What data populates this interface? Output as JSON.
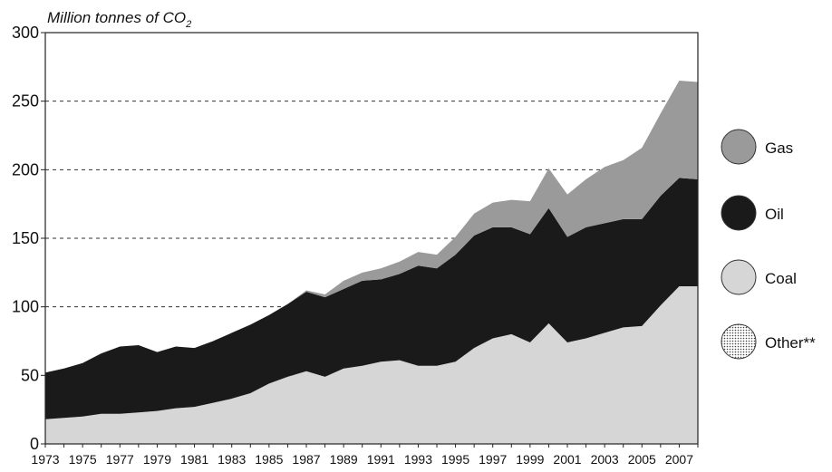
{
  "chart_data": {
    "type": "area",
    "stacked": true,
    "title": "",
    "unit_label_main": "Million tonnes of CO",
    "unit_label_sub": "2",
    "xlabel": "",
    "ylabel": "",
    "ylim": [
      0,
      300
    ],
    "yticks": [
      0,
      50,
      100,
      150,
      200,
      250,
      300
    ],
    "xlim": [
      1973,
      2008
    ],
    "xtick_labels": [
      "1973",
      "1975",
      "1977",
      "1979",
      "1981",
      "1983",
      "1985",
      "1987",
      "1989",
      "1991",
      "1993",
      "1995",
      "1997",
      "1999",
      "2001",
      "2003",
      "2005",
      "2007"
    ],
    "grid": "horizontal dashed",
    "legend_position": "right",
    "x": [
      1973,
      1974,
      1975,
      1976,
      1977,
      1978,
      1979,
      1980,
      1981,
      1982,
      1983,
      1984,
      1985,
      1986,
      1987,
      1988,
      1989,
      1990,
      1991,
      1992,
      1993,
      1994,
      1995,
      1996,
      1997,
      1998,
      1999,
      2000,
      2001,
      2002,
      2003,
      2004,
      2005,
      2006,
      2007,
      2008
    ],
    "series": [
      {
        "name": "Coal",
        "color": "#d6d6d6",
        "values": [
          18,
          19,
          20,
          22,
          22,
          23,
          24,
          26,
          27,
          30,
          33,
          37,
          44,
          49,
          53,
          49,
          55,
          57,
          60,
          61,
          57,
          57,
          60,
          70,
          77,
          80,
          74,
          88,
          74,
          77,
          81,
          85,
          86,
          101,
          115,
          115
        ]
      },
      {
        "name": "Oil",
        "color": "#1a1a1a",
        "values": [
          34,
          36,
          39,
          44,
          49,
          49,
          43,
          45,
          43,
          45,
          48,
          50,
          50,
          53,
          58,
          58,
          58,
          62,
          60,
          63,
          73,
          71,
          78,
          82,
          81,
          78,
          79,
          84,
          77,
          81,
          80,
          79,
          78,
          80,
          79,
          78
        ]
      },
      {
        "name": "Gas",
        "color": "#9a9a9a",
        "values": [
          0,
          0,
          0,
          0,
          0,
          0,
          0,
          0,
          0,
          0,
          0,
          0,
          0,
          0,
          1,
          2,
          6,
          6,
          8,
          9,
          10,
          10,
          13,
          16,
          18,
          20,
          24,
          29,
          31,
          35,
          41,
          43,
          52,
          60,
          71,
          71
        ]
      },
      {
        "name": "Other**",
        "color": "#ffffff",
        "pattern": "dots",
        "values": [
          0,
          0,
          0,
          0,
          0,
          0,
          0,
          0,
          0,
          0,
          0,
          0,
          0,
          0,
          0,
          0,
          0,
          0,
          0,
          0,
          0,
          0,
          0,
          0,
          0,
          0,
          0,
          0,
          0,
          0,
          0,
          0,
          0,
          0,
          0,
          0
        ]
      }
    ],
    "legend": [
      "Gas",
      "Oil",
      "Coal",
      "Other**"
    ]
  }
}
